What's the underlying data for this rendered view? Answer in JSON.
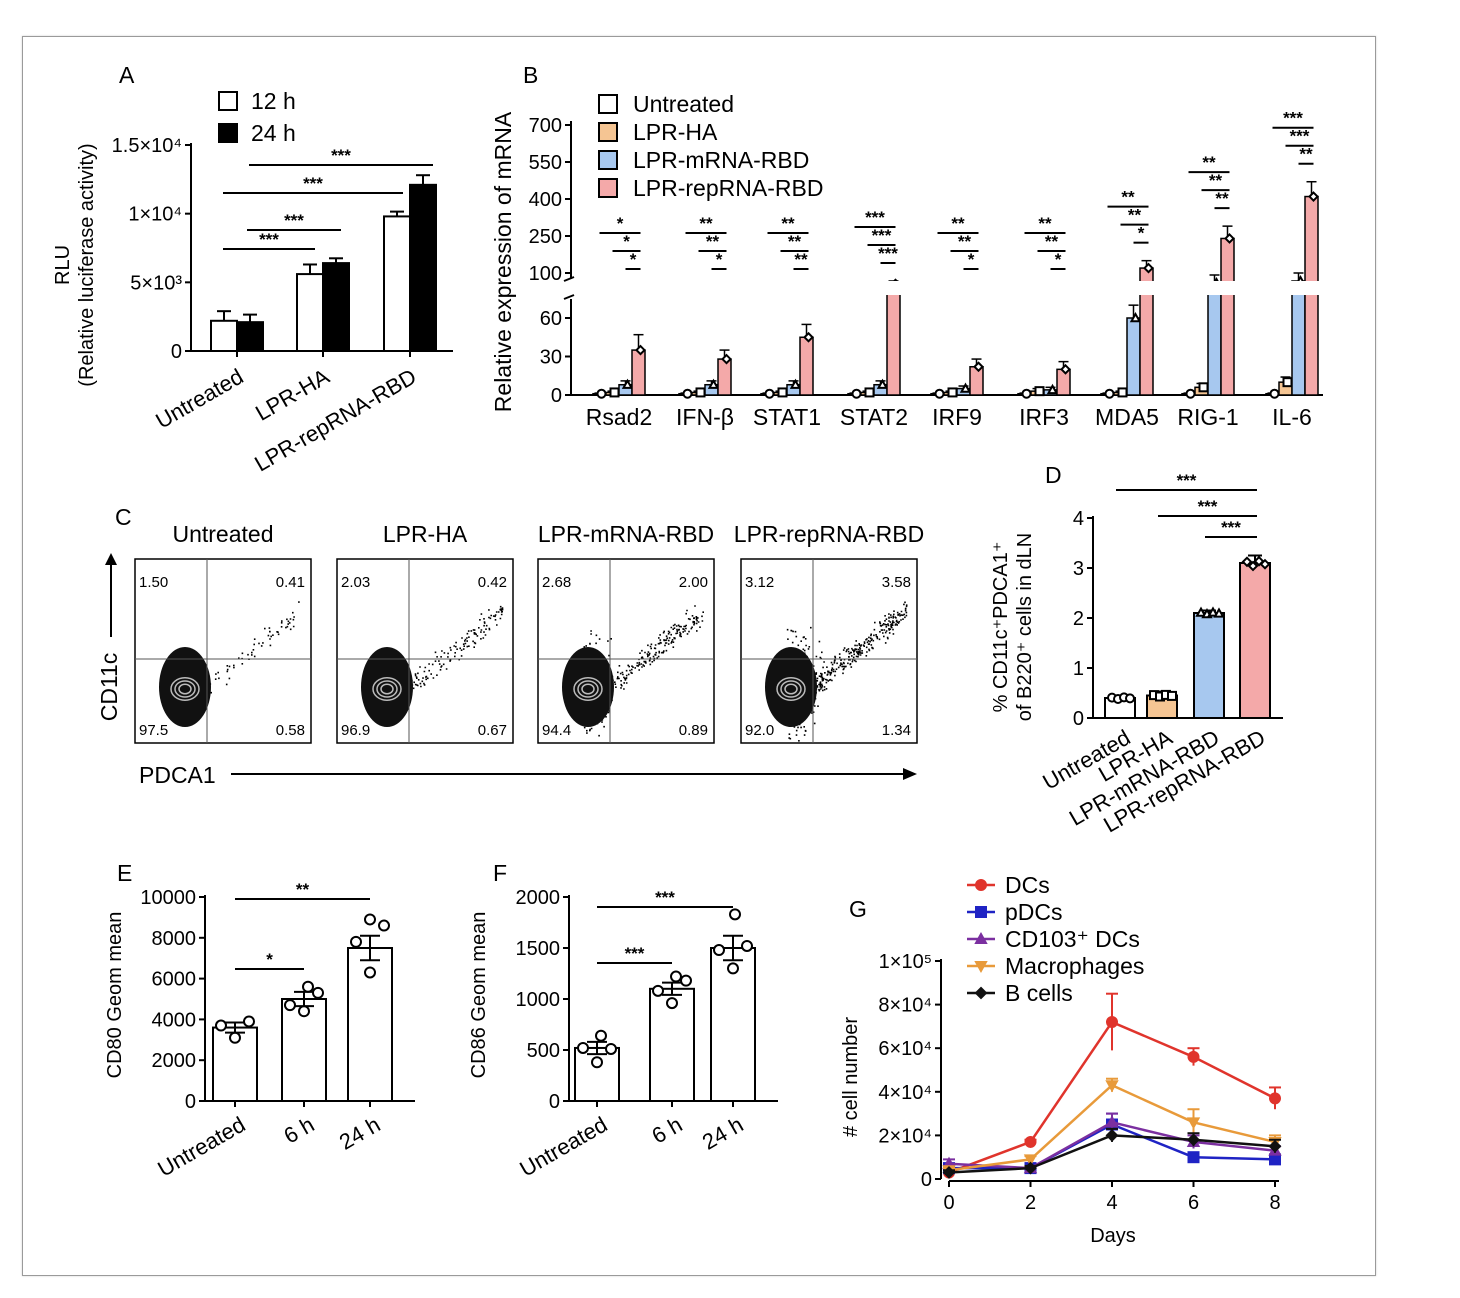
{
  "panels": {
    "A": {
      "letter": "A",
      "chart_data": {
        "type": "bar",
        "categories": [
          "Untreated",
          "LPR-HA",
          "LPR-repRNA-RBD"
        ],
        "series": [
          {
            "name": "12 h",
            "values": [
              2200,
              5600,
              9800
            ],
            "errors": [
              700,
              700,
              350
            ],
            "color": "#ffffff"
          },
          {
            "name": "24 h",
            "values": [
              2100,
              6400,
              12100
            ],
            "errors": [
              550,
              350,
              700
            ],
            "color": "#000000"
          }
        ],
        "ylabel_line1": "RLU",
        "ylabel_line2": "(Relative luciferase activity)",
        "ylim": [
          0,
          15000
        ],
        "yticks": [
          {
            "v": 0,
            "label": "0"
          },
          {
            "v": 5000,
            "label": "5×10³"
          },
          {
            "v": 10000,
            "label": "1×10⁴"
          },
          {
            "v": 15000,
            "label": "1.5×10⁴"
          }
        ],
        "significance": [
          {
            "from": 0,
            "to": 1,
            "label": "***"
          },
          {
            "from": 0,
            "to": 1,
            "label": "***"
          },
          {
            "from": 0,
            "to": 2,
            "label": "***"
          },
          {
            "from": 0,
            "to": 2,
            "label": "***"
          }
        ],
        "legend_position": "top-left"
      }
    },
    "B": {
      "letter": "B",
      "chart_data": {
        "type": "bar",
        "categories": [
          "Rsad2",
          "IFN-β",
          "STAT1",
          "STAT2",
          "IRF9",
          "IRF3",
          "MDA5",
          "RIG-1",
          "IL-6"
        ],
        "series": [
          {
            "name": "Untreated",
            "values": [
              1,
              1,
              1,
              1,
              1,
              1,
              1,
              1,
              1
            ],
            "errors": [
              0.5,
              0.5,
              0.5,
              0.5,
              0.5,
              0.5,
              0.5,
              0.5,
              0.5
            ],
            "color": "#ffffff"
          },
          {
            "name": "LPR-HA",
            "values": [
              2,
              2,
              2,
              2,
              2,
              3,
              2,
              6,
              10
            ],
            "errors": [
              1,
              1,
              1,
              1,
              1,
              2,
              1,
              3,
              4
            ],
            "color": "#f5c593"
          },
          {
            "name": "LPR-mRNA-RBD",
            "values": [
              8,
              8,
              8,
              8,
              5,
              4,
              60,
              75,
              80
            ],
            "errors": [
              3,
              3,
              3,
              3,
              2,
              2,
              10,
              20,
              20
            ],
            "color": "#a7c8ef"
          },
          {
            "name": "LPR-repRNA-RBD",
            "values": [
              35,
              28,
              45,
              73,
              22,
              20,
              120,
              240,
              410
            ],
            "errors": [
              12,
              7,
              10,
              7,
              6,
              6,
              30,
              50,
              60
            ],
            "color": "#f4a9a9"
          }
        ],
        "ylabel": "Relative expression of mRNA",
        "yticks_lower": [
          "0",
          "30",
          "60"
        ],
        "yticks_upper": [
          "100",
          "250",
          "400",
          "550",
          "700"
        ],
        "axis_break": true,
        "significance": [
          [
            "*",
            "*",
            "*"
          ],
          [
            "**",
            "**",
            "*"
          ],
          [
            "**",
            "**",
            "**"
          ],
          [
            "***",
            "***",
            "***"
          ],
          [
            "**",
            "**",
            "*"
          ],
          [
            "**",
            "**",
            "*"
          ],
          [
            "**",
            "**",
            "*"
          ],
          [
            "**",
            "**",
            "**"
          ],
          [
            "***",
            "***",
            "**"
          ]
        ],
        "legend_position": "top-left"
      }
    },
    "C": {
      "letter": "C",
      "xlabel": "PDCA1",
      "ylabel": "CD11c",
      "plots": [
        {
          "title": "Untreated",
          "ul": "1.50",
          "ur": "0.41",
          "ll": "97.5",
          "lr": "0.58"
        },
        {
          "title": "LPR-HA",
          "ul": "2.03",
          "ur": "0.42",
          "ll": "96.9",
          "lr": "0.67"
        },
        {
          "title": "LPR-mRNA-RBD",
          "ul": "2.68",
          "ur": "2.00",
          "ll": "94.4",
          "lr": "0.89"
        },
        {
          "title": "LPR-repRNA-RBD",
          "ul": "3.12",
          "ur": "3.58",
          "ll": "92.0",
          "lr": "1.34"
        }
      ]
    },
    "D": {
      "letter": "D",
      "chart_data": {
        "type": "bar",
        "categories": [
          "Untreated",
          "LPR-HA",
          "LPR-mRNA-RBD",
          "LPR-repRNA-RBD"
        ],
        "values": [
          0.4,
          0.45,
          2.1,
          3.1
        ],
        "errors": [
          0.05,
          0.08,
          0.05,
          0.15
        ],
        "colors": [
          "#ffffff",
          "#f5c593",
          "#a7c8ef",
          "#f4a9a9"
        ],
        "ylabel_line1": "% CD11c⁺PDCA1⁺",
        "ylabel_line2": "of B220⁺ cells in dLN",
        "ylim": [
          0,
          4
        ],
        "yticks": [
          "0",
          "1",
          "2",
          "3",
          "4"
        ],
        "significance": [
          {
            "from": 0,
            "to": 3,
            "label": "***"
          },
          {
            "from": 1,
            "to": 3,
            "label": "***"
          },
          {
            "from": 2,
            "to": 3,
            "label": "***"
          }
        ]
      }
    },
    "E": {
      "letter": "E",
      "chart_data": {
        "type": "bar",
        "categories": [
          "Untreated",
          "6 h",
          "24 h"
        ],
        "values": [
          3600,
          5000,
          7500
        ],
        "errors": [
          250,
          350,
          600
        ],
        "ylabel": "CD80 Geom mean",
        "ylim": [
          0,
          10000
        ],
        "yticks": [
          "0",
          "2000",
          "4000",
          "6000",
          "8000",
          "10000"
        ],
        "significance": [
          {
            "from": 0,
            "to": 1,
            "label": "*"
          },
          {
            "from": 0,
            "to": 2,
            "label": "**"
          }
        ]
      }
    },
    "F": {
      "letter": "F",
      "chart_data": {
        "type": "bar",
        "categories": [
          "Untreated",
          "6 h",
          "24 h"
        ],
        "values": [
          520,
          1100,
          1500
        ],
        "errors": [
          60,
          60,
          120
        ],
        "ylabel": "CD86 Geom mean",
        "ylim": [
          0,
          2000
        ],
        "yticks": [
          "0",
          "500",
          "1000",
          "1500",
          "2000"
        ],
        "significance": [
          {
            "from": 0,
            "to": 1,
            "label": "***"
          },
          {
            "from": 0,
            "to": 2,
            "label": "***"
          }
        ]
      }
    },
    "G": {
      "letter": "G",
      "chart_data": {
        "type": "line",
        "x": [
          0,
          2,
          4,
          6,
          8
        ],
        "xlabel": "Days",
        "ylabel": "# cell number",
        "ylim": [
          0,
          100000
        ],
        "xlim": [
          0,
          8
        ],
        "xticks": [
          "0",
          "2",
          "4",
          "6",
          "8"
        ],
        "yticks": [
          {
            "v": 0,
            "label": "0"
          },
          {
            "v": 20000,
            "label": "2×10⁴"
          },
          {
            "v": 40000,
            "label": "4×10⁴"
          },
          {
            "v": 60000,
            "label": "6×10⁴"
          },
          {
            "v": 80000,
            "label": "8×10⁴"
          },
          {
            "v": 100000,
            "label": "1×10⁵"
          }
        ],
        "series": [
          {
            "name": "DCs",
            "marker": "circle",
            "color": "#e0342c",
            "values": [
              3000,
              17000,
              72000,
              56000,
              37000
            ],
            "errors": [
              1000,
              1000,
              13000,
              4000,
              5000
            ]
          },
          {
            "name": "pDCs",
            "marker": "square",
            "color": "#1f23c4",
            "values": [
              5000,
              5000,
              25000,
              10000,
              9000
            ],
            "errors": [
              1500,
              1000,
              5000,
              1500,
              1500
            ]
          },
          {
            "name": "CD103⁺ DCs",
            "marker": "triangle",
            "color": "#7b2fa0",
            "values": [
              7000,
              5000,
              26000,
              17000,
              13000
            ],
            "errors": [
              2000,
              1000,
              4000,
              3000,
              2000
            ]
          },
          {
            "name": "Macrophages",
            "marker": "triangle-down",
            "color": "#e89a3a",
            "values": [
              4000,
              9000,
              43000,
              26000,
              17000
            ],
            "errors": [
              1000,
              1500,
              3000,
              6000,
              3000
            ]
          },
          {
            "name": "B cells",
            "marker": "diamond",
            "color": "#111111",
            "values": [
              3000,
              5000,
              20000,
              18000,
              15000
            ],
            "errors": [
              1000,
              1000,
              3000,
              3000,
              3000
            ]
          }
        ],
        "legend_position": "top-left"
      }
    }
  }
}
